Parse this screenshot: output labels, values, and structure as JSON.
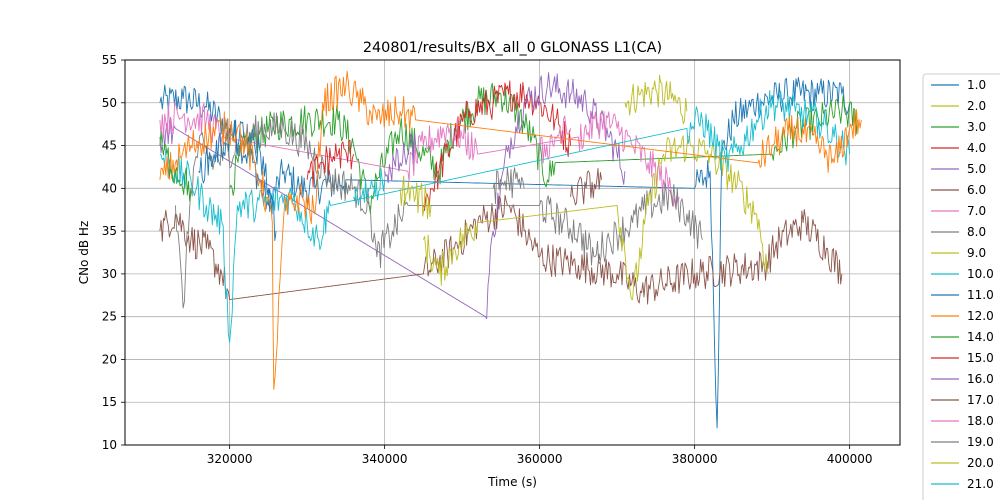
{
  "chart_data": {
    "type": "line",
    "title": "240801/results/BX_all_0 GLONASS L1(CA)",
    "xlabel": "Time (s)",
    "ylabel": "CNo dB Hz",
    "xlim": [
      306500,
      406500
    ],
    "ylim": [
      10,
      55
    ],
    "xticks": [
      320000,
      340000,
      360000,
      380000,
      400000
    ],
    "yticks": [
      10,
      15,
      20,
      25,
      30,
      35,
      40,
      45,
      50,
      55
    ],
    "grid": true,
    "legend": "right, outside plot area (clipped)",
    "series": [
      {
        "name": "1.0",
        "color": "#1f77b4",
        "points": [
          [
            311000,
            50
          ],
          [
            314000,
            50.5
          ],
          [
            317000,
            49.5
          ],
          [
            320000,
            47
          ],
          [
            323000,
            43
          ],
          [
            325000,
            38
          ],
          [
            327000,
            42
          ],
          [
            329000,
            40
          ],
          [
            331000,
            40
          ],
          [
            335000,
            41
          ],
          [
            380000,
            40
          ],
          [
            382000,
            42
          ],
          [
            382900,
            12
          ],
          [
            383500,
            44
          ],
          [
            385000,
            48
          ],
          [
            388000,
            50
          ],
          [
            392000,
            51
          ],
          [
            396000,
            51
          ],
          [
            399000,
            51
          ],
          [
            400000,
            50
          ]
        ]
      },
      {
        "name": "2.0",
        "color": "#bcbd22",
        "points": [
          [
            371000,
            50
          ],
          [
            373000,
            51
          ],
          [
            375000,
            51.5
          ],
          [
            377000,
            50.5
          ],
          [
            379000,
            49
          ]
        ]
      },
      {
        "name": "3.0",
        "color": "#2ca02c",
        "points": [
          [
            320000,
            40
          ],
          [
            322000,
            45
          ],
          [
            326000,
            47.5
          ],
          [
            330000,
            48
          ],
          [
            334000,
            48
          ],
          [
            336000,
            45
          ],
          [
            338000,
            38
          ],
          [
            339000,
            41
          ],
          [
            342000,
            47
          ],
          [
            344000,
            45
          ],
          [
            347000,
            42
          ],
          [
            349000,
            47
          ],
          [
            352000,
            50
          ],
          [
            355000,
            51
          ],
          [
            357000,
            49
          ],
          [
            359000,
            46
          ],
          [
            361000,
            41
          ],
          [
            362000,
            43
          ],
          [
            390000,
            44
          ],
          [
            393000,
            47
          ],
          [
            396000,
            48
          ],
          [
            399000,
            49
          ],
          [
            401000,
            48
          ]
        ]
      },
      {
        "name": "4.0",
        "color": "#d62728",
        "points": [
          [
            345000,
            38
          ],
          [
            347000,
            42
          ],
          [
            349000,
            46
          ],
          [
            351000,
            49
          ],
          [
            354000,
            50
          ],
          [
            356000,
            51
          ],
          [
            358000,
            51
          ],
          [
            360000,
            50
          ],
          [
            362000,
            48
          ],
          [
            364000,
            45
          ]
        ]
      },
      {
        "name": "5.0",
        "color": "#9467bd",
        "points": [
          [
            311000,
            46
          ],
          [
            313000,
            47
          ],
          [
            353000,
            25
          ],
          [
            354000,
            35
          ],
          [
            356000,
            45
          ],
          [
            358000,
            50
          ],
          [
            361000,
            52
          ],
          [
            364000,
            51
          ],
          [
            366000,
            50
          ],
          [
            369000,
            46
          ],
          [
            371000,
            42
          ]
        ]
      },
      {
        "name": "6.0",
        "color": "#8c564b",
        "points": [
          [
            311000,
            35
          ],
          [
            313000,
            37
          ],
          [
            315000,
            34
          ],
          [
            317000,
            33
          ],
          [
            319000,
            30
          ],
          [
            320000,
            27
          ],
          [
            345000,
            30
          ],
          [
            349000,
            33
          ],
          [
            352000,
            36
          ],
          [
            356000,
            38
          ],
          [
            358000,
            35
          ],
          [
            360000,
            32
          ],
          [
            365000,
            31
          ],
          [
            370000,
            30
          ],
          [
            373000,
            28
          ],
          [
            380000,
            30
          ],
          [
            389000,
            31
          ],
          [
            391000,
            34
          ],
          [
            394000,
            36
          ],
          [
            397000,
            33
          ],
          [
            399000,
            30
          ]
        ]
      },
      {
        "name": "7.0",
        "color": "#e377c2",
        "points": [
          [
            311000,
            48
          ],
          [
            314000,
            48.5
          ],
          [
            317000,
            48
          ],
          [
            319000,
            46
          ],
          [
            343000,
            42
          ],
          [
            345000,
            45
          ],
          [
            348000,
            47
          ],
          [
            350000,
            46
          ],
          [
            352000,
            44
          ],
          [
            365000,
            46
          ],
          [
            368000,
            48
          ],
          [
            370000,
            47
          ],
          [
            372000,
            45
          ],
          [
            374000,
            43
          ],
          [
            376000,
            41
          ],
          [
            378000,
            39
          ]
        ]
      },
      {
        "name": "8.0",
        "color": "#7f7f7f",
        "points": [
          [
            313000,
            38
          ],
          [
            314000,
            26
          ],
          [
            315000,
            40
          ],
          [
            316000,
            45
          ],
          [
            318000,
            43
          ],
          [
            321000,
            45
          ],
          [
            324000,
            47
          ],
          [
            327000,
            47
          ],
          [
            330000,
            45
          ],
          [
            333000,
            41
          ],
          [
            336000,
            40
          ],
          [
            338000,
            38
          ],
          [
            339000,
            32
          ],
          [
            341000,
            35
          ],
          [
            343000,
            38
          ],
          [
            360000,
            38
          ],
          [
            363000,
            36
          ],
          [
            365000,
            35
          ],
          [
            367000,
            32
          ],
          [
            369000,
            34
          ],
          [
            372000,
            36
          ],
          [
            374000,
            38
          ],
          [
            377000,
            39
          ],
          [
            379000,
            37
          ],
          [
            381000,
            34
          ]
        ]
      },
      {
        "name": "9.0",
        "color": "#bcbd22",
        "points": [
          [
            345000,
            34
          ],
          [
            347000,
            30
          ],
          [
            349000,
            33
          ],
          [
            352000,
            36
          ],
          [
            370000,
            38
          ],
          [
            372000,
            27
          ],
          [
            374000,
            38
          ],
          [
            376000,
            44
          ],
          [
            379000,
            45
          ],
          [
            382000,
            44
          ],
          [
            385000,
            41
          ],
          [
            388000,
            37
          ],
          [
            389500,
            30
          ]
        ]
      },
      {
        "name": "10.0",
        "color": "#17becf",
        "points": [
          [
            311000,
            44
          ],
          [
            313000,
            42
          ],
          [
            315000,
            41
          ],
          [
            317000,
            38
          ],
          [
            319000,
            36
          ],
          [
            320000,
            22
          ],
          [
            321000,
            38
          ],
          [
            323000,
            38
          ],
          [
            328000,
            39
          ],
          [
            330000,
            36
          ],
          [
            331500,
            34
          ],
          [
            333000,
            38
          ],
          [
            379000,
            47
          ],
          [
            381000,
            48
          ],
          [
            384000,
            43
          ],
          [
            386000,
            45
          ],
          [
            388000,
            48
          ],
          [
            390000,
            50
          ],
          [
            393000,
            49
          ],
          [
            396000,
            48
          ],
          [
            398000,
            46
          ],
          [
            400000,
            44
          ]
        ]
      },
      {
        "name": "11.0",
        "color": "#1f77b4",
        "points": [
          [
            316000,
            42
          ],
          [
            318000,
            44
          ],
          [
            320000,
            46
          ],
          [
            322000,
            46
          ],
          [
            324000,
            44
          ],
          [
            325000,
            40
          ],
          [
            326000,
            35
          ]
        ]
      },
      {
        "name": "12.0",
        "color": "#ff7f0e",
        "points": [
          [
            311000,
            41
          ],
          [
            313000,
            43
          ],
          [
            315000,
            45
          ],
          [
            317000,
            46
          ],
          [
            319000,
            47
          ],
          [
            321000,
            47
          ],
          [
            322000,
            45
          ],
          [
            324000,
            41
          ],
          [
            325500,
            36
          ],
          [
            325700,
            16.5
          ],
          [
            326000,
            20
          ],
          [
            327000,
            37
          ],
          [
            329000,
            39
          ],
          [
            331000,
            37
          ],
          [
            332000,
            50
          ],
          [
            335000,
            52
          ],
          [
            337000,
            50
          ],
          [
            339000,
            48
          ],
          [
            342000,
            49
          ],
          [
            344000,
            48
          ],
          [
            388000,
            43
          ],
          [
            390000,
            45
          ],
          [
            393000,
            47
          ],
          [
            396000,
            45
          ],
          [
            398000,
            43
          ],
          [
            400000,
            47
          ],
          [
            401500,
            48
          ]
        ]
      },
      {
        "name": "14.0",
        "color": "#2ca02c",
        "points": [
          [
            311000,
            45
          ],
          [
            313000,
            42
          ],
          [
            315000,
            40
          ]
        ]
      },
      {
        "name": "15.0",
        "color": "#d62728",
        "points": [
          [
            330000,
            41
          ],
          [
            332000,
            43
          ],
          [
            334000,
            44
          ],
          [
            336000,
            44
          ]
        ]
      },
      {
        "name": "16.0",
        "color": "#9467bd",
        "points": [
          [
            340000,
            42
          ],
          [
            342000,
            43
          ],
          [
            344000,
            45
          ]
        ]
      },
      {
        "name": "17.0",
        "color": "#8c564b",
        "points": [
          [
            364000,
            39
          ],
          [
            366000,
            40
          ],
          [
            368000,
            41
          ]
        ]
      },
      {
        "name": "18.0",
        "color": "#e377c2",
        "points": [
          [
            360000,
            44
          ],
          [
            362000,
            46
          ],
          [
            364000,
            47
          ]
        ]
      },
      {
        "name": "19.0",
        "color": "#7f7f7f",
        "points": [
          [
            354000,
            40
          ],
          [
            356000,
            41
          ],
          [
            358000,
            40
          ]
        ]
      },
      {
        "name": "20.0",
        "color": "#bcbd22",
        "points": [
          [
            342000,
            40
          ],
          [
            344000,
            39
          ],
          [
            346000,
            38
          ]
        ]
      },
      {
        "name": "21.0",
        "color": "#17becf",
        "points": [
          [
            336000,
            39
          ],
          [
            338000,
            40
          ],
          [
            340000,
            41
          ]
        ]
      }
    ]
  }
}
